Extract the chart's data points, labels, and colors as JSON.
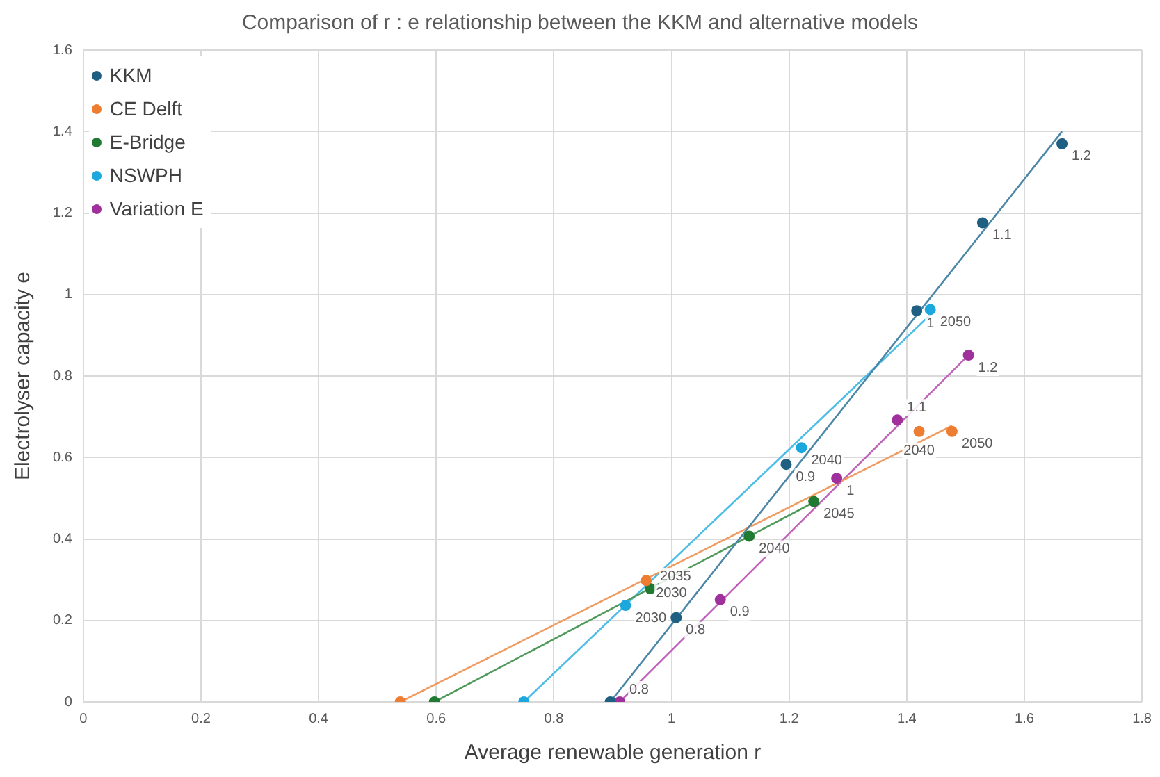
{
  "chart_data": {
    "type": "scatter",
    "title": "Comparison of r : e relationship between the KKM and alternative models",
    "xlabel": "Average renewable generation r",
    "ylabel": "Electrolyser capacity e",
    "xlim": [
      0,
      1.8
    ],
    "xticks": [
      0,
      0.2,
      0.4,
      0.6,
      0.8,
      1,
      1.2,
      1.4,
      1.6,
      1.8
    ],
    "ylim": [
      0,
      1.6
    ],
    "yticks": [
      0,
      0.2,
      0.4,
      0.6,
      0.8,
      1,
      1.2,
      1.4,
      1.6
    ],
    "grid": true,
    "legend": "top left",
    "marker": "circle",
    "series": [
      {
        "name": "KKM",
        "color": "#1f5f82",
        "x": [
          0.896,
          1.008,
          1.195,
          1.417,
          1.529,
          1.664
        ],
        "values": [
          0,
          0.207,
          0.583,
          0.96,
          1.176,
          1.37
        ]
      },
      {
        "name": "CE Delft",
        "color": "#ed7d31",
        "x": [
          0.539,
          0.957,
          1.421,
          1.477
        ],
        "values": [
          0,
          0.298,
          0.664,
          0.664
        ]
      },
      {
        "name": "E-Bridge",
        "color": "#217a32",
        "x": [
          0.597,
          0.964,
          1.132,
          1.242
        ],
        "values": [
          0,
          0.278,
          0.407,
          0.492
        ]
      },
      {
        "name": "NSWPH",
        "color": "#1ca7dd",
        "x": [
          0.749,
          0.922,
          1.221,
          1.44
        ],
        "values": [
          0,
          0.237,
          0.624,
          0.963
        ]
      },
      {
        "name": "Variation E",
        "color": "#a0309c",
        "x": [
          0.912,
          1.083,
          1.281,
          1.384,
          1.505
        ],
        "values": [
          0,
          0.251,
          0.549,
          0.692,
          0.851
        ]
      },
      {
        "type": "line",
        "marker": "none",
        "color": "#4a86a6",
        "x": [
          0.896,
          1.664
        ],
        "values": [
          0,
          1.4
        ]
      },
      {
        "type": "line",
        "marker": "none",
        "color": "#f29a5e",
        "x": [
          0.539,
          1.477
        ],
        "values": [
          0,
          0.678
        ]
      },
      {
        "type": "line",
        "marker": "none",
        "color": "#4f9a5a",
        "x": [
          0.597,
          1.242
        ],
        "values": [
          0,
          0.49
        ]
      },
      {
        "type": "line",
        "marker": "none",
        "color": "#4dbde6",
        "x": [
          0.749,
          1.44
        ],
        "values": [
          0,
          0.95
        ]
      },
      {
        "type": "line",
        "marker": "none",
        "color": "#bf63bb",
        "x": [
          0.912,
          1.505
        ],
        "values": [
          0,
          0.851
        ]
      }
    ],
    "annotations": [
      {
        "text": "0.8",
        "x": 1.008,
        "y": 0.207
      },
      {
        "text": "0.9",
        "x": 1.195,
        "y": 0.583
      },
      {
        "text": "1",
        "x": 1.417,
        "y": 0.96
      },
      {
        "text": "1.1",
        "x": 1.529,
        "y": 1.176
      },
      {
        "text": "1.2",
        "x": 1.664,
        "y": 1.37
      },
      {
        "text": "2030",
        "x": 0.957,
        "y": 0.298
      },
      {
        "text": "2040",
        "x": 1.421,
        "y": 0.664
      },
      {
        "text": "2050",
        "x": 1.477,
        "y": 0.664
      },
      {
        "text": "2035",
        "x": 0.964,
        "y": 0.278
      },
      {
        "text": "2040",
        "x": 1.132,
        "y": 0.407
      },
      {
        "text": "2045",
        "x": 1.242,
        "y": 0.492
      },
      {
        "text": "2030",
        "x": 0.922,
        "y": 0.237
      },
      {
        "text": "2040",
        "x": 1.221,
        "y": 0.624
      },
      {
        "text": "2050",
        "x": 1.44,
        "y": 0.963
      },
      {
        "text": "0.8",
        "x": 0.912,
        "y": 0
      },
      {
        "text": "0.9",
        "x": 1.083,
        "y": 0.251
      },
      {
        "text": "1",
        "x": 1.281,
        "y": 0.549
      },
      {
        "text": "1.1",
        "x": 1.384,
        "y": 0.692
      },
      {
        "text": "1.2",
        "x": 1.505,
        "y": 0.851
      }
    ]
  }
}
